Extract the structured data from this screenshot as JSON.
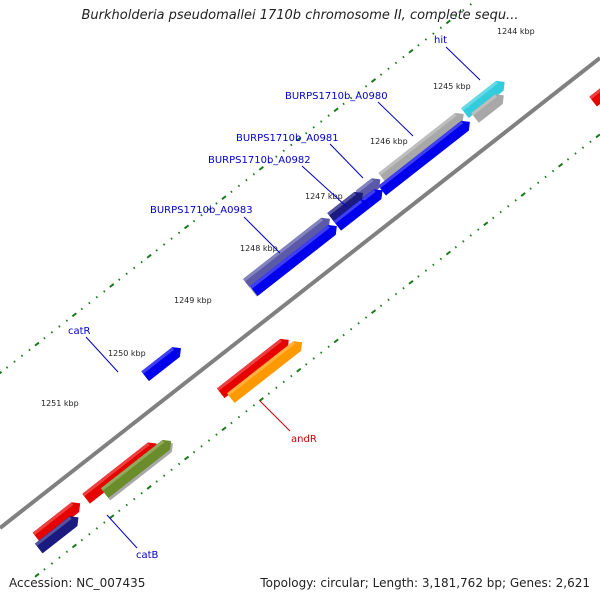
{
  "title": "Burkholderia pseudomallei 1710b chromosome II, complete sequ...",
  "footer": {
    "accession": "Accession: NC_007435",
    "summary": "Topology: circular; Length: 3,181,762 bp; Genes: 2,621"
  },
  "colors": {
    "backbone": "#808080",
    "tick": "#1a7a1a",
    "forward_label": "#0000cc",
    "reverse_label": "#cc0000",
    "blue": "#0000ee",
    "navy": "#1a1a80",
    "slate": "#5a5aa8",
    "gray": "#a8a8a8",
    "red": "#e60000",
    "orange": "#ff9900",
    "olive": "#6b8c2a",
    "cyan": "#33ccdd"
  },
  "scale": {
    "unit": "kbp",
    "labels": [
      "1244 kbp",
      "1245 kbp",
      "1246 kbp",
      "1247 kbp",
      "1248 kbp",
      "1249 kbp",
      "1250 kbp",
      "1251 kbp"
    ]
  },
  "genes": [
    {
      "label": "hit",
      "strand": "forward",
      "color_key": "cyan"
    },
    {
      "label": "BURPS1710b_A0980",
      "strand": "forward",
      "color_key": "gray"
    },
    {
      "label": "BURPS1710b_A0981",
      "strand": "forward",
      "color_key": "slate"
    },
    {
      "label": "BURPS1710b_A0982",
      "strand": "forward",
      "color_key": "navy"
    },
    {
      "label": "BURPS1710b_A0983",
      "strand": "forward",
      "color_key": "slate"
    },
    {
      "label": "catR",
      "strand": "forward",
      "color_key": "blue"
    },
    {
      "label": "andR",
      "strand": "reverse",
      "color_key": "orange"
    },
    {
      "label": "catB",
      "strand": "forward",
      "color_key": "olive"
    }
  ]
}
